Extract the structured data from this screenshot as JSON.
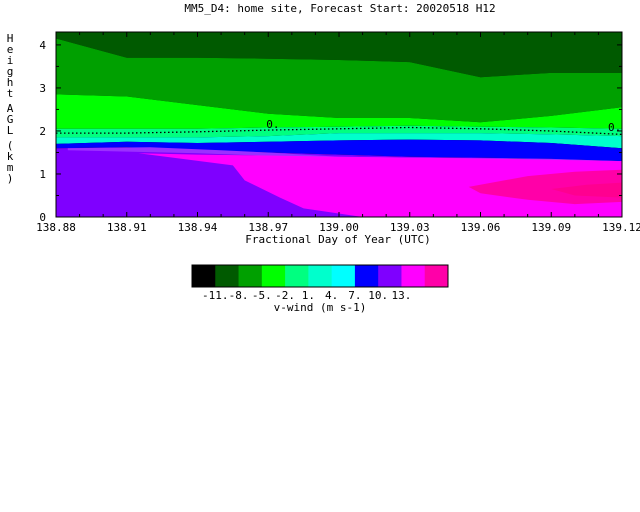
{
  "chart_data": {
    "type": "heatmap",
    "title": "MM5_D4: home site,  Forecast Start: 20020518 H12",
    "xlabel": "Fractional Day of Year (UTC)",
    "ylabel": "Height AGL (km)",
    "xlim": [
      138.88,
      139.12
    ],
    "ylim": [
      0,
      4.3
    ],
    "x_ticks": [
      "138.88",
      "138.91",
      "138.94",
      "138.97",
      "139.00",
      "139.03",
      "139.06",
      "139.09",
      "139.12"
    ],
    "y_ticks": [
      "0",
      "1",
      "2",
      "3",
      "4"
    ],
    "contour_label": "0.",
    "zero_contour": {
      "x": [
        138.88,
        138.91,
        138.94,
        138.97,
        139.0,
        139.03,
        139.06,
        139.09,
        139.12
      ],
      "y": [
        1.95,
        1.95,
        1.98,
        2.02,
        2.05,
        2.08,
        2.05,
        2.0,
        1.92
      ]
    },
    "bands": [
      {
        "level": "-11",
        "color": "#000000",
        "lower": [
          4.3,
          4.3,
          4.3,
          4.3,
          4.3,
          4.3,
          4.3,
          4.3,
          4.3
        ],
        "upper": [
          4.3,
          4.3,
          4.3,
          4.3,
          4.3,
          4.3,
          4.3,
          4.3,
          4.3
        ]
      },
      {
        "level": "-11 to -8",
        "color": "#005a00",
        "lower": [
          4.15,
          3.7,
          3.7,
          3.68,
          3.65,
          3.6,
          3.25,
          3.35,
          3.35
        ],
        "upper": [
          4.3,
          4.3,
          4.3,
          4.3,
          4.3,
          4.3,
          4.3,
          4.3,
          4.3
        ]
      },
      {
        "level": "-8 to -5",
        "color": "#00a000",
        "lower": [
          2.85,
          2.8,
          2.6,
          2.4,
          2.3,
          2.3,
          2.2,
          2.35,
          2.55
        ],
        "upper": [
          4.15,
          3.7,
          3.7,
          3.68,
          3.65,
          3.6,
          3.25,
          3.35,
          3.35
        ]
      },
      {
        "level": "-5 to -2",
        "color": "#00ff00",
        "lower": [
          2.05,
          2.05,
          2.05,
          2.08,
          2.1,
          2.12,
          2.1,
          2.08,
          2.05
        ],
        "upper": [
          2.85,
          2.8,
          2.6,
          2.4,
          2.3,
          2.3,
          2.2,
          2.35,
          2.55
        ]
      },
      {
        "level": "-2 to 1",
        "color": "#00ff80",
        "lower": [
          1.85,
          1.85,
          1.85,
          1.88,
          1.95,
          1.95,
          1.95,
          1.92,
          1.88
        ],
        "upper": [
          2.05,
          2.05,
          2.05,
          2.08,
          2.1,
          2.12,
          2.1,
          2.08,
          2.05
        ]
      },
      {
        "level": "1 to 4",
        "color": "#00ffcc",
        "lower": [
          1.7,
          1.75,
          1.72,
          1.75,
          1.78,
          1.8,
          1.78,
          1.72,
          1.6
        ],
        "upper": [
          1.85,
          1.85,
          1.85,
          1.88,
          1.95,
          1.95,
          1.95,
          1.92,
          1.88
        ]
      },
      {
        "level": "4 to 7",
        "color": "#0000ff",
        "lower": [
          1.6,
          1.62,
          1.55,
          1.5,
          1.45,
          1.4,
          1.38,
          1.35,
          1.3
        ],
        "upper": [
          1.7,
          1.75,
          1.72,
          1.75,
          1.78,
          1.8,
          1.78,
          1.72,
          1.6
        ]
      },
      {
        "level": "7 to 10",
        "color": "#7f00ff",
        "lower": [
          0,
          0,
          0,
          0,
          0,
          0,
          0,
          0,
          0
        ],
        "upper": [
          1.6,
          1.62,
          1.55,
          1.5,
          1.45,
          1.4,
          1.38,
          1.35,
          1.3
        ]
      }
    ],
    "regions": [
      {
        "level": "7 to 10 (sub-band)",
        "color": "#9b30ff",
        "x": [
          138.885,
          138.92,
          138.95,
          138.97,
          138.985,
          139.0,
          139.03,
          139.06,
          139.09,
          139.12,
          139.12,
          139.09,
          139.06,
          139.03,
          139.0,
          138.97,
          138.94,
          138.91,
          138.885
        ],
        "y": [
          1.6,
          1.62,
          1.55,
          1.5,
          1.45,
          1.4,
          1.38,
          1.37,
          1.35,
          1.3,
          1.25,
          1.28,
          1.3,
          1.32,
          1.35,
          1.42,
          1.48,
          1.52,
          1.55
        ]
      },
      {
        "level": "10 to 13",
        "color": "#ff00ff",
        "x": [
          138.915,
          138.94,
          138.97,
          139.0,
          139.03,
          139.06,
          139.09,
          139.12,
          139.12,
          139.01,
          138.985,
          138.975,
          138.96,
          138.955
        ],
        "y": [
          1.48,
          1.45,
          1.43,
          1.4,
          1.38,
          1.36,
          1.33,
          1.3,
          0,
          0,
          0.2,
          0.45,
          0.85,
          1.2
        ]
      },
      {
        "level": "13+",
        "color": "#ff00a8",
        "x": [
          139.055,
          139.08,
          139.1,
          139.12,
          139.12,
          139.1,
          139.08,
          139.06
        ],
        "y": [
          0.7,
          0.95,
          1.05,
          1.1,
          0.35,
          0.3,
          0.4,
          0.55
        ]
      },
      {
        "level": "13+ (core)",
        "color": "#ff0090",
        "x": [
          139.09,
          139.105,
          139.12,
          139.12,
          139.1
        ],
        "y": [
          0.65,
          0.75,
          0.8,
          0.45,
          0.5
        ]
      }
    ],
    "colorbar": {
      "label": "v-wind (m s-1)",
      "tick_labels": [
        "-11.",
        "-8.",
        "-5.",
        "-2.",
        "1.",
        "4.",
        "7.",
        "10.",
        "13."
      ],
      "colors": [
        "#000000",
        "#005a00",
        "#00a000",
        "#00ff00",
        "#00ff80",
        "#00ffcc",
        "#00ffff",
        "#0000ff",
        "#7f00ff",
        "#ff00ff",
        "#ff00a8"
      ]
    }
  }
}
